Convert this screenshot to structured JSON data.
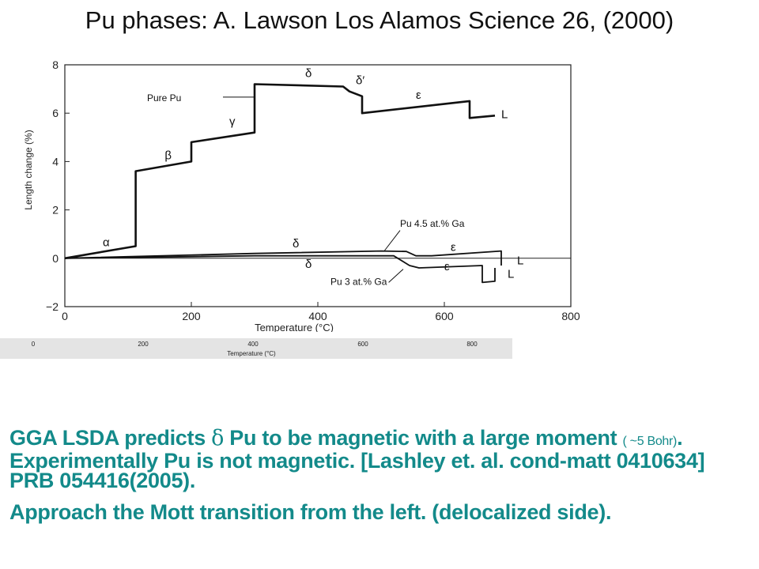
{
  "slide": {
    "title": "Pu  phases: A. Lawson  Los Alamos Science 26, (2000)"
  },
  "chart_data": {
    "type": "line",
    "title": "",
    "xlabel": "Temperature (°C)",
    "ylabel": "Length change (%)",
    "xlim": [
      0,
      800
    ],
    "ylim": [
      -2,
      8
    ],
    "x_ticks": [
      0,
      200,
      400,
      600,
      800
    ],
    "y_ticks": [
      -2,
      0,
      2,
      4,
      6,
      8
    ],
    "x_tick_labels": [
      "0",
      "200",
      "400",
      "600",
      "800"
    ],
    "y_tick_labels": [
      "−2",
      "0",
      "2",
      "4",
      "6",
      "8"
    ],
    "zero_line": 0,
    "series": [
      {
        "name": "Pure Pu",
        "x": [
          0,
          112,
          112,
          200,
          200,
          300,
          300,
          440,
          450,
          470,
          470,
          640,
          640,
          680
        ],
        "y": [
          0,
          0.5,
          3.6,
          4.0,
          4.8,
          5.2,
          7.2,
          7.1,
          6.9,
          6.7,
          6.0,
          6.5,
          5.8,
          5.9
        ]
      },
      {
        "name": "Pu 4.5 at.% Ga",
        "x": [
          0,
          300,
          500,
          540,
          555,
          580,
          690,
          690
        ],
        "y": [
          0,
          0.2,
          0.3,
          0.28,
          0.1,
          0.1,
          0.3,
          -0.3
        ]
      },
      {
        "name": "Pu 3 at.% Ga",
        "x": [
          0,
          300,
          520,
          545,
          560,
          660,
          660,
          680,
          680
        ],
        "y": [
          0,
          0.1,
          0.1,
          -0.3,
          -0.4,
          -0.3,
          -1.0,
          -0.95,
          -0.4
        ]
      }
    ],
    "annotations": [
      {
        "text": "α",
        "x": 60,
        "y": 0.5
      },
      {
        "text": "β",
        "x": 158,
        "y": 4.1
      },
      {
        "text": "γ",
        "x": 260,
        "y": 5.5
      },
      {
        "text": "δ",
        "x": 380,
        "y": 7.5
      },
      {
        "text": "δ′",
        "x": 460,
        "y": 7.2
      },
      {
        "text": "ε",
        "x": 555,
        "y": 6.6
      },
      {
        "text": "L",
        "x": 690,
        "y": 5.8
      },
      {
        "text": "Pure Pu",
        "x": 130,
        "y": 6.5
      },
      {
        "text": "δ",
        "x": 360,
        "y": 0.45
      },
      {
        "text": "ε",
        "x": 610,
        "y": 0.3
      },
      {
        "text": "L",
        "x": 715,
        "y": -0.25
      },
      {
        "text": "δ",
        "x": 380,
        "y": -0.4
      },
      {
        "text": "ε",
        "x": 600,
        "y": -0.5
      },
      {
        "text": "L",
        "x": 700,
        "y": -0.8
      },
      {
        "text": "Pu 4.5 at.% Ga",
        "x": 530,
        "y": 1.3
      },
      {
        "text": "Pu 3 at.% Ga",
        "x": 420,
        "y": -1.1
      }
    ],
    "grid": false,
    "legend": "none"
  },
  "strip": {
    "ticks": [
      "0",
      "200",
      "400",
      "600",
      "800"
    ],
    "label": "Temperature (°C)"
  },
  "body": {
    "p1_a": "GGA LSDA  predicts  ",
    "p1_delta": "δ",
    "p1_b": " Pu to be magnetic with a  large moment ",
    "p1_small": "( ~5 Bohr)",
    "p1_c": ". Experimentally Pu is not magnetic. [Lashley et. al. cond-matt 0410634] PRB  054416(2005).",
    "p2": "Approach the Mott transition from the left. (delocalized side)."
  },
  "colors": {
    "accent_text": "#138a8a",
    "axis": "#222222",
    "strip_bg": "#e4e4e4"
  }
}
